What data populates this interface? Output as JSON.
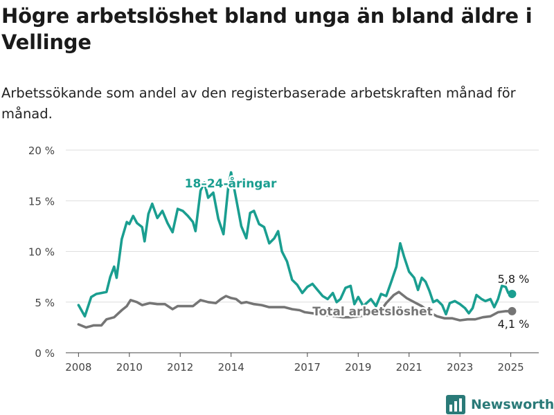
{
  "title": "Högre arbetslöshet bland unga än bland äldre i Vellinge",
  "subtitle": "Arbetssökande som andel av den registerbaserade arbetskraften månad för månad.",
  "brand": "Newsworthy",
  "chart_data": {
    "type": "line",
    "ylim": [
      0,
      20
    ],
    "xlim": [
      2007.5,
      2026.1
    ],
    "y_ticks": [
      0,
      5,
      10,
      15,
      20
    ],
    "y_tick_labels": [
      "0 %",
      "5 %",
      "10 %",
      "15 %",
      "20 %"
    ],
    "x_ticks": [
      2008,
      2010,
      2012,
      2014,
      2017,
      2019,
      2021,
      2023,
      2025
    ],
    "x_tick_labels": [
      "2008",
      "2010",
      "2012",
      "2014",
      "2017",
      "2019",
      "2021",
      "2023",
      "2025"
    ],
    "grid": true,
    "series": [
      {
        "name": "18–24-åringar",
        "label": "18–24-åringar",
        "color": "#1a9e90",
        "end_label": "5,8 %",
        "points": [
          [
            2008.0,
            4.7
          ],
          [
            2008.25,
            3.6
          ],
          [
            2008.5,
            5.5
          ],
          [
            2008.7,
            5.8
          ],
          [
            2008.9,
            5.9
          ],
          [
            2009.1,
            6.0
          ],
          [
            2009.25,
            7.5
          ],
          [
            2009.4,
            8.5
          ],
          [
            2009.5,
            7.4
          ],
          [
            2009.7,
            11.2
          ],
          [
            2009.9,
            12.9
          ],
          [
            2010.0,
            12.7
          ],
          [
            2010.15,
            13.5
          ],
          [
            2010.3,
            12.8
          ],
          [
            2010.5,
            12.4
          ],
          [
            2010.6,
            11.0
          ],
          [
            2010.75,
            13.7
          ],
          [
            2010.9,
            14.7
          ],
          [
            2011.1,
            13.3
          ],
          [
            2011.3,
            14.0
          ],
          [
            2011.5,
            12.8
          ],
          [
            2011.7,
            11.9
          ],
          [
            2011.9,
            14.2
          ],
          [
            2012.1,
            14.0
          ],
          [
            2012.3,
            13.5
          ],
          [
            2012.5,
            12.9
          ],
          [
            2012.6,
            12.0
          ],
          [
            2012.8,
            16.0
          ],
          [
            2012.95,
            16.8
          ],
          [
            2013.1,
            15.3
          ],
          [
            2013.3,
            15.8
          ],
          [
            2013.5,
            13.2
          ],
          [
            2013.7,
            11.7
          ],
          [
            2013.9,
            16.6
          ],
          [
            2014.0,
            17.8
          ],
          [
            2014.2,
            15.2
          ],
          [
            2014.4,
            12.5
          ],
          [
            2014.6,
            11.3
          ],
          [
            2014.75,
            13.8
          ],
          [
            2014.9,
            14.0
          ],
          [
            2015.1,
            12.7
          ],
          [
            2015.3,
            12.4
          ],
          [
            2015.5,
            10.8
          ],
          [
            2015.7,
            11.3
          ],
          [
            2015.85,
            12.0
          ],
          [
            2016.0,
            10.0
          ],
          [
            2016.2,
            9.0
          ],
          [
            2016.4,
            7.2
          ],
          [
            2016.6,
            6.7
          ],
          [
            2016.8,
            5.9
          ],
          [
            2017.0,
            6.5
          ],
          [
            2017.2,
            6.8
          ],
          [
            2017.4,
            6.2
          ],
          [
            2017.6,
            5.6
          ],
          [
            2017.8,
            5.3
          ],
          [
            2018.0,
            5.9
          ],
          [
            2018.15,
            5.0
          ],
          [
            2018.3,
            5.3
          ],
          [
            2018.5,
            6.4
          ],
          [
            2018.7,
            6.6
          ],
          [
            2018.85,
            4.8
          ],
          [
            2019.0,
            5.5
          ],
          [
            2019.2,
            4.6
          ],
          [
            2019.5,
            5.3
          ],
          [
            2019.7,
            4.6
          ],
          [
            2019.9,
            5.8
          ],
          [
            2020.1,
            5.6
          ],
          [
            2020.3,
            7.0
          ],
          [
            2020.5,
            8.5
          ],
          [
            2020.65,
            10.8
          ],
          [
            2020.8,
            9.5
          ],
          [
            2021.0,
            8.0
          ],
          [
            2021.2,
            7.4
          ],
          [
            2021.35,
            6.2
          ],
          [
            2021.5,
            7.4
          ],
          [
            2021.65,
            7.0
          ],
          [
            2021.8,
            6.1
          ],
          [
            2021.95,
            5.0
          ],
          [
            2022.1,
            5.2
          ],
          [
            2022.3,
            4.7
          ],
          [
            2022.45,
            3.8
          ],
          [
            2022.6,
            4.9
          ],
          [
            2022.8,
            5.1
          ],
          [
            2023.0,
            4.8
          ],
          [
            2023.2,
            4.4
          ],
          [
            2023.35,
            3.9
          ],
          [
            2023.5,
            4.4
          ],
          [
            2023.65,
            5.7
          ],
          [
            2023.85,
            5.3
          ],
          [
            2024.0,
            5.1
          ],
          [
            2024.2,
            5.3
          ],
          [
            2024.35,
            4.5
          ],
          [
            2024.5,
            5.3
          ],
          [
            2024.65,
            6.6
          ],
          [
            2024.8,
            6.5
          ],
          [
            2024.9,
            5.9
          ],
          [
            2025.05,
            5.8
          ]
        ]
      },
      {
        "name": "Total arbetslöshet",
        "label": "Total arbetslöshet",
        "color": "#757575",
        "end_label": "4,1 %",
        "points": [
          [
            2008.0,
            2.8
          ],
          [
            2008.3,
            2.5
          ],
          [
            2008.6,
            2.7
          ],
          [
            2008.9,
            2.7
          ],
          [
            2009.1,
            3.3
          ],
          [
            2009.4,
            3.5
          ],
          [
            2009.7,
            4.2
          ],
          [
            2009.9,
            4.6
          ],
          [
            2010.05,
            5.2
          ],
          [
            2010.3,
            5.0
          ],
          [
            2010.5,
            4.7
          ],
          [
            2010.8,
            4.9
          ],
          [
            2011.1,
            4.8
          ],
          [
            2011.4,
            4.8
          ],
          [
            2011.7,
            4.3
          ],
          [
            2011.9,
            4.6
          ],
          [
            2012.2,
            4.6
          ],
          [
            2012.5,
            4.6
          ],
          [
            2012.8,
            5.2
          ],
          [
            2013.1,
            5.0
          ],
          [
            2013.4,
            4.9
          ],
          [
            2013.6,
            5.3
          ],
          [
            2013.8,
            5.6
          ],
          [
            2014.0,
            5.4
          ],
          [
            2014.2,
            5.3
          ],
          [
            2014.4,
            4.9
          ],
          [
            2014.6,
            5.0
          ],
          [
            2014.9,
            4.8
          ],
          [
            2015.2,
            4.7
          ],
          [
            2015.5,
            4.5
          ],
          [
            2015.8,
            4.5
          ],
          [
            2016.1,
            4.5
          ],
          [
            2016.4,
            4.3
          ],
          [
            2016.7,
            4.2
          ],
          [
            2016.9,
            4.0
          ],
          [
            2017.2,
            3.9
          ],
          [
            2017.5,
            3.8
          ],
          [
            2017.8,
            3.7
          ],
          [
            2018.1,
            3.6
          ],
          [
            2018.4,
            3.5
          ],
          [
            2018.7,
            3.5
          ],
          [
            2019.0,
            3.6
          ],
          [
            2019.3,
            3.7
          ],
          [
            2019.6,
            3.9
          ],
          [
            2019.9,
            4.2
          ],
          [
            2020.1,
            4.9
          ],
          [
            2020.4,
            5.7
          ],
          [
            2020.6,
            6.0
          ],
          [
            2020.9,
            5.4
          ],
          [
            2021.2,
            5.0
          ],
          [
            2021.5,
            4.6
          ],
          [
            2021.8,
            4.0
          ],
          [
            2022.1,
            3.6
          ],
          [
            2022.4,
            3.4
          ],
          [
            2022.7,
            3.4
          ],
          [
            2023.0,
            3.2
          ],
          [
            2023.3,
            3.3
          ],
          [
            2023.6,
            3.3
          ],
          [
            2023.9,
            3.5
          ],
          [
            2024.2,
            3.6
          ],
          [
            2024.5,
            4.0
          ],
          [
            2024.8,
            4.1
          ],
          [
            2025.05,
            4.1
          ]
        ]
      }
    ]
  }
}
